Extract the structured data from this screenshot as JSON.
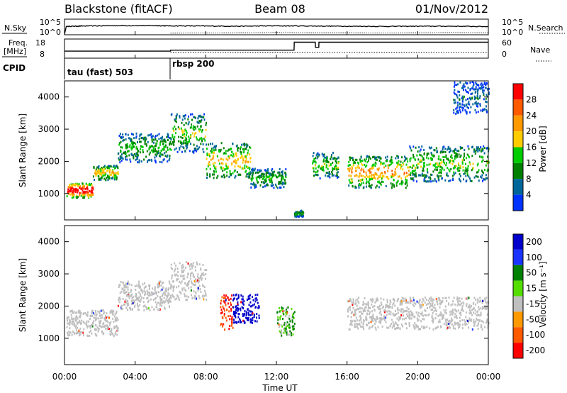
{
  "header": {
    "station": "Blackstone (fitACF)",
    "beam": "Beam 08",
    "date": "01/Nov/2012"
  },
  "top_panels": {
    "nsky_label": "N.Sky",
    "nsky_ticks": [
      "10^5",
      "10^0"
    ],
    "nsearch_label": "N.Search",
    "nsearch_ticks": [
      "10^5",
      "10^0"
    ],
    "freq_label_line1": "Freq.",
    "freq_label_line2": "[MHz]",
    "freq_ticks": [
      "18",
      "8"
    ],
    "nave_label": "Nave",
    "nave_ticks": [
      "60",
      "0"
    ],
    "cpid_label": "CPID",
    "cpid_segments": [
      {
        "label": "tau (fast) 503",
        "start_hour": 0
      },
      {
        "label": "rbsp 200",
        "start_hour": 6
      }
    ]
  },
  "axes": {
    "xlabel": "Time UT",
    "x_ticks": [
      "00:00",
      "04:00",
      "08:00",
      "12:00",
      "16:00",
      "20:00",
      "00:00"
    ],
    "ylabel": "Slant Range [km]",
    "y_ticks": [
      "1000",
      "2000",
      "3000",
      "4000"
    ]
  },
  "power_colorbar": {
    "label": "Power [dB]",
    "ticks": [
      "28",
      "24",
      "20",
      "16",
      "12",
      "8",
      "4"
    ],
    "colors": [
      "#ff0000",
      "#ff5a00",
      "#ff9900",
      "#ffcc00",
      "#00cc00",
      "#008000",
      "#006699",
      "#0033ff"
    ]
  },
  "velocity_colorbar": {
    "label": "Velocity [m s⁻¹]",
    "ticks": [
      "200",
      "100",
      "50",
      "15",
      "-15",
      "-50",
      "-100",
      "-200"
    ],
    "colors": [
      "#0000cc",
      "#1a33ff",
      "#008000",
      "#55dd00",
      "#bfbfbf",
      "#ff9900",
      "#ff5a00",
      "#ff0000"
    ]
  },
  "chart_data": [
    {
      "type": "line",
      "title": "N.Sky / N.Search",
      "x_range": [
        0,
        24
      ],
      "series": [
        {
          "name": "N.Sky",
          "x": [
            0,
            0.1,
            1,
            3,
            5,
            6,
            8,
            10,
            12,
            14,
            16,
            18,
            20,
            22,
            24
          ],
          "y": [
            0.2,
            4.2,
            4.4,
            4.6,
            4.6,
            4.5,
            4.4,
            4.3,
            4.5,
            4.4,
            4.3,
            4.2,
            4.3,
            4.3,
            4.1
          ]
        },
        {
          "name": "N.Search",
          "x": [
            6,
            8,
            10,
            12,
            14,
            16,
            18,
            20,
            22,
            24
          ],
          "y": [
            0.8,
            0.9,
            1.0,
            1.1,
            1.0,
            1.0,
            0.9,
            1.0,
            1.1,
            1.0
          ]
        }
      ]
    },
    {
      "type": "line",
      "title": "Freq / Nave",
      "x_range": [
        0,
        24
      ],
      "series": [
        {
          "name": "Freq.",
          "x": [
            0,
            0.2,
            6,
            6.01,
            13,
            13.01,
            14.2,
            14.21,
            14.4,
            14.41,
            24
          ],
          "y": [
            10.5,
            10.5,
            10.5,
            11.3,
            11.3,
            17.5,
            17.5,
            13.5,
            13.5,
            17.5,
            17.5
          ]
        },
        {
          "name": "Nave",
          "x": [
            6,
            24
          ],
          "y": [
            8,
            8
          ]
        }
      ]
    },
    {
      "type": "heatmap",
      "title": "Power [dB]",
      "xlabel": "Time UT",
      "ylabel": "Slant Range [km]",
      "x_range": [
        0,
        24
      ],
      "y_range": [
        180,
        4500
      ],
      "value_range": [
        0,
        30
      ],
      "features": [
        {
          "t0": 0.1,
          "t1": 1.6,
          "r0": 900,
          "r1": 1350,
          "power": 28
        },
        {
          "t0": 1.6,
          "t1": 3.0,
          "r0": 1450,
          "r1": 1900,
          "power": 16
        },
        {
          "t0": 3.0,
          "t1": 6.0,
          "r0": 2000,
          "r1": 2900,
          "power": 10
        },
        {
          "t0": 6.0,
          "t1": 8.0,
          "r0": 2300,
          "r1": 3500,
          "power": 12
        },
        {
          "t0": 8.0,
          "t1": 10.5,
          "r0": 1500,
          "r1": 2600,
          "power": 16
        },
        {
          "t0": 10.5,
          "t1": 12.5,
          "r0": 1200,
          "r1": 1800,
          "power": 10
        },
        {
          "t0": 13.0,
          "t1": 13.5,
          "r0": 300,
          "r1": 500,
          "power": 10
        },
        {
          "t0": 14.0,
          "t1": 15.5,
          "r0": 1500,
          "r1": 2300,
          "power": 12
        },
        {
          "t0": 16.0,
          "t1": 19.5,
          "r0": 1200,
          "r1": 2200,
          "power": 18
        },
        {
          "t0": 19.5,
          "t1": 24.0,
          "r0": 1400,
          "r1": 2500,
          "power": 12
        },
        {
          "t0": 22.0,
          "t1": 24.0,
          "r0": 3500,
          "r1": 4500,
          "power": 5
        }
      ]
    },
    {
      "type": "heatmap",
      "title": "Velocity [m s-1]",
      "xlabel": "Time UT",
      "ylabel": "Slant Range [km]",
      "x_range": [
        0,
        24
      ],
      "y_range": [
        180,
        4500
      ],
      "value_range": [
        -250,
        250
      ],
      "features": [
        {
          "t0": 0.1,
          "t1": 3.0,
          "r0": 1100,
          "r1": 1900,
          "velocity": 0
        },
        {
          "t0": 3.0,
          "t1": 6.0,
          "r0": 1900,
          "r1": 2800,
          "velocity": 0
        },
        {
          "t0": 6.0,
          "t1": 8.0,
          "r0": 2200,
          "r1": 3400,
          "velocity": 0
        },
        {
          "t0": 8.8,
          "t1": 9.5,
          "r0": 1300,
          "r1": 2400,
          "velocity": -100
        },
        {
          "t0": 9.5,
          "t1": 11.0,
          "r0": 1500,
          "r1": 2400,
          "velocity": 200
        },
        {
          "t0": 12.0,
          "t1": 13.0,
          "r0": 1100,
          "r1": 2000,
          "velocity": 30
        },
        {
          "t0": 16.0,
          "t1": 24.0,
          "r0": 1300,
          "r1": 2300,
          "velocity": 0
        }
      ]
    }
  ]
}
